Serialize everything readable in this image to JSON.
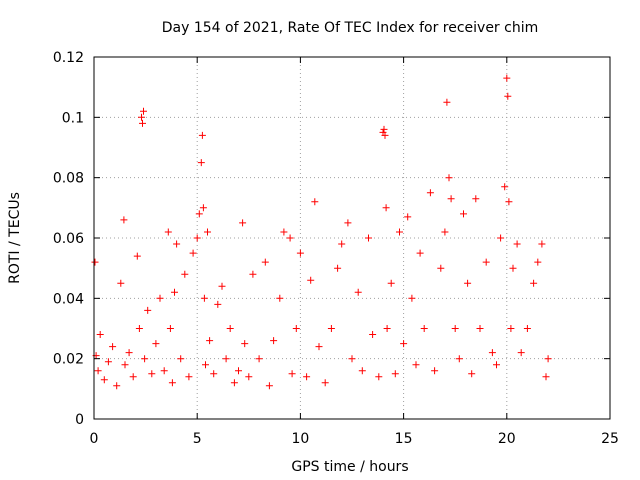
{
  "chart_data": {
    "type": "scatter",
    "title": "Day 154 of 2021, Rate Of TEC Index for receiver chim",
    "xlabel": "GPS time / hours",
    "ylabel": "ROTI / TECUs",
    "xlim": [
      0,
      25
    ],
    "ylim": [
      0,
      0.12
    ],
    "xticks": [
      0,
      5,
      10,
      15,
      20,
      25
    ],
    "yticks": [
      0,
      0.02,
      0.04,
      0.06,
      0.08,
      0.1,
      0.12
    ],
    "ytick_labels": [
      "0",
      "0.02",
      "0.04",
      "0.06",
      "0.08",
      "0.1",
      "0.12"
    ],
    "grid": true,
    "marker": "+",
    "color": "#ff0000",
    "series": [
      {
        "x": [
          0.05,
          0.1,
          0.2,
          0.3,
          0.5,
          0.7,
          0.9,
          1.1,
          1.3,
          1.45,
          1.5,
          1.7,
          1.9,
          2.1,
          2.2,
          2.3,
          2.35,
          2.4,
          2.45,
          2.6,
          2.8,
          3.0,
          3.2,
          3.4,
          3.6,
          3.7,
          3.8,
          3.9,
          4.0,
          4.2,
          4.4,
          4.6,
          4.8,
          5.0,
          5.1,
          5.2,
          5.25,
          5.3,
          5.35,
          5.4,
          5.5,
          5.6,
          5.8,
          6.0,
          6.2,
          6.4,
          6.6,
          6.8,
          7.0,
          7.2,
          7.3,
          7.5,
          7.7,
          8.0,
          8.3,
          8.5,
          8.7,
          9.0,
          9.2,
          9.5,
          9.6,
          9.8,
          10.0,
          10.3,
          10.5,
          10.7,
          10.9,
          11.2,
          11.5,
          11.8,
          12.0,
          12.3,
          12.5,
          12.8,
          13.0,
          13.3,
          13.5,
          13.8,
          14.0,
          14.05,
          14.1,
          14.15,
          14.2,
          14.4,
          14.6,
          14.8,
          15.0,
          15.2,
          15.4,
          15.6,
          15.8,
          16.0,
          16.3,
          16.5,
          16.8,
          17.0,
          17.1,
          17.2,
          17.3,
          17.5,
          17.7,
          17.9,
          18.1,
          18.3,
          18.5,
          18.7,
          19.0,
          19.3,
          19.5,
          19.7,
          19.9,
          20.0,
          20.05,
          20.1,
          20.2,
          20.3,
          20.5,
          20.7,
          21.0,
          21.3,
          21.5,
          21.7,
          21.9,
          22.0
        ],
        "y": [
          0.052,
          0.021,
          0.016,
          0.028,
          0.013,
          0.019,
          0.024,
          0.011,
          0.045,
          0.066,
          0.018,
          0.022,
          0.014,
          0.054,
          0.03,
          0.1,
          0.098,
          0.102,
          0.02,
          0.036,
          0.015,
          0.025,
          0.04,
          0.016,
          0.062,
          0.03,
          0.012,
          0.042,
          0.058,
          0.02,
          0.048,
          0.014,
          0.055,
          0.06,
          0.068,
          0.085,
          0.094,
          0.07,
          0.04,
          0.018,
          0.062,
          0.026,
          0.015,
          0.038,
          0.044,
          0.02,
          0.03,
          0.012,
          0.016,
          0.065,
          0.025,
          0.014,
          0.048,
          0.02,
          0.052,
          0.011,
          0.026,
          0.04,
          0.062,
          0.06,
          0.015,
          0.03,
          0.055,
          0.014,
          0.046,
          0.072,
          0.024,
          0.012,
          0.03,
          0.05,
          0.058,
          0.065,
          0.02,
          0.042,
          0.016,
          0.06,
          0.028,
          0.014,
          0.095,
          0.096,
          0.094,
          0.07,
          0.03,
          0.045,
          0.015,
          0.062,
          0.025,
          0.067,
          0.04,
          0.018,
          0.055,
          0.03,
          0.075,
          0.016,
          0.05,
          0.062,
          0.105,
          0.08,
          0.073,
          0.03,
          0.02,
          0.068,
          0.045,
          0.015,
          0.073,
          0.03,
          0.052,
          0.022,
          0.018,
          0.06,
          0.077,
          0.113,
          0.107,
          0.072,
          0.03,
          0.05,
          0.058,
          0.022,
          0.03,
          0.045,
          0.052,
          0.058,
          0.014,
          0.02
        ]
      }
    ]
  }
}
